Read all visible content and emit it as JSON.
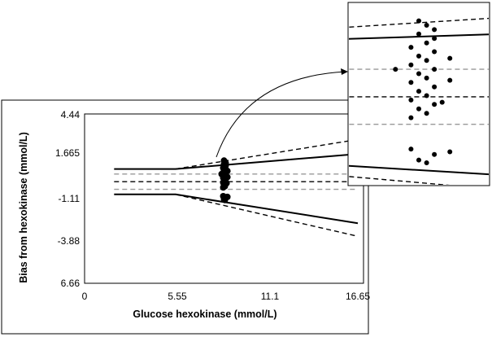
{
  "chart_data": {
    "type": "scatter",
    "xlabel": "Glucose hexokinase (mmol/L)",
    "ylabel": "Bias from hexokinase (mmol/L)",
    "x_ticks": [
      "0",
      "5.55",
      "11.1",
      "16.65"
    ],
    "y_ticks": [
      "4.44",
      "1.665",
      "-1.11",
      "-3.88",
      "6.66"
    ],
    "xlim": [
      0,
      16.65
    ],
    "ylim": [
      -6.66,
      4.44
    ],
    "legend": "none",
    "grid": false,
    "lines": [
      {
        "style": "solid",
        "color": "#000000",
        "points": [
          [
            1.8,
            0.83
          ],
          [
            5.55,
            0.83
          ],
          [
            16.65,
            1.82
          ]
        ]
      },
      {
        "style": "solid",
        "color": "#000000",
        "points": [
          [
            1.8,
            -0.83
          ],
          [
            5.55,
            -0.83
          ],
          [
            16.65,
            -2.72
          ]
        ]
      },
      {
        "style": "dashed",
        "color": "#000000",
        "points": [
          [
            1.8,
            0.0
          ],
          [
            5.55,
            0.0
          ],
          [
            16.65,
            0.0
          ]
        ]
      },
      {
        "style": "dashed",
        "color": "#000000",
        "points": [
          [
            5.55,
            0.83
          ],
          [
            16.65,
            2.77
          ]
        ]
      },
      {
        "style": "dashed",
        "color": "#000000",
        "points": [
          [
            5.55,
            -0.83
          ],
          [
            16.65,
            -3.58
          ]
        ]
      },
      {
        "style": "dashed",
        "color": "#999999",
        "points": [
          [
            1.8,
            0.5
          ],
          [
            16.65,
            0.5
          ]
        ]
      },
      {
        "style": "dashed",
        "color": "#999999",
        "points": [
          [
            1.8,
            -0.5
          ],
          [
            16.65,
            -0.5
          ]
        ]
      }
    ],
    "points": [
      {
        "x": 8.5,
        "y": 1.38
      },
      {
        "x": 8.55,
        "y": 1.3
      },
      {
        "x": 8.6,
        "y": 1.22
      },
      {
        "x": 8.5,
        "y": 1.14
      },
      {
        "x": 8.6,
        "y": 1.06
      },
      {
        "x": 8.55,
        "y": 0.98
      },
      {
        "x": 8.45,
        "y": 0.9
      },
      {
        "x": 8.6,
        "y": 0.82
      },
      {
        "x": 8.5,
        "y": 0.74
      },
      {
        "x": 8.55,
        "y": 0.66
      },
      {
        "x": 8.45,
        "y": 0.58
      },
      {
        "x": 8.6,
        "y": 0.5
      },
      {
        "x": 8.5,
        "y": 0.42
      },
      {
        "x": 8.55,
        "y": 0.34
      },
      {
        "x": 8.45,
        "y": 0.26
      },
      {
        "x": 8.6,
        "y": 0.18
      },
      {
        "x": 8.5,
        "y": 0.1
      },
      {
        "x": 8.55,
        "y": 0.02
      },
      {
        "x": 8.45,
        "y": -0.06
      },
      {
        "x": 8.6,
        "y": -0.14
      },
      {
        "x": 8.5,
        "y": -0.22
      },
      {
        "x": 8.55,
        "y": -0.3
      },
      {
        "x": 8.45,
        "y": -0.38
      },
      {
        "x": 8.65,
        "y": -0.1
      },
      {
        "x": 8.7,
        "y": 0.3
      },
      {
        "x": 8.35,
        "y": 0.5
      },
      {
        "x": 8.7,
        "y": 0.7
      },
      {
        "x": 8.45,
        "y": -0.95
      },
      {
        "x": 8.6,
        "y": -1.05
      },
      {
        "x": 8.5,
        "y": -1.15
      },
      {
        "x": 8.7,
        "y": -1.0
      },
      {
        "x": 8.55,
        "y": -1.2
      }
    ]
  },
  "inset": {
    "x_range": [
      8.05,
      8.95
    ],
    "y_range": [
      -1.6,
      1.7
    ],
    "scaled_note": "magnified view of the point cluster"
  }
}
